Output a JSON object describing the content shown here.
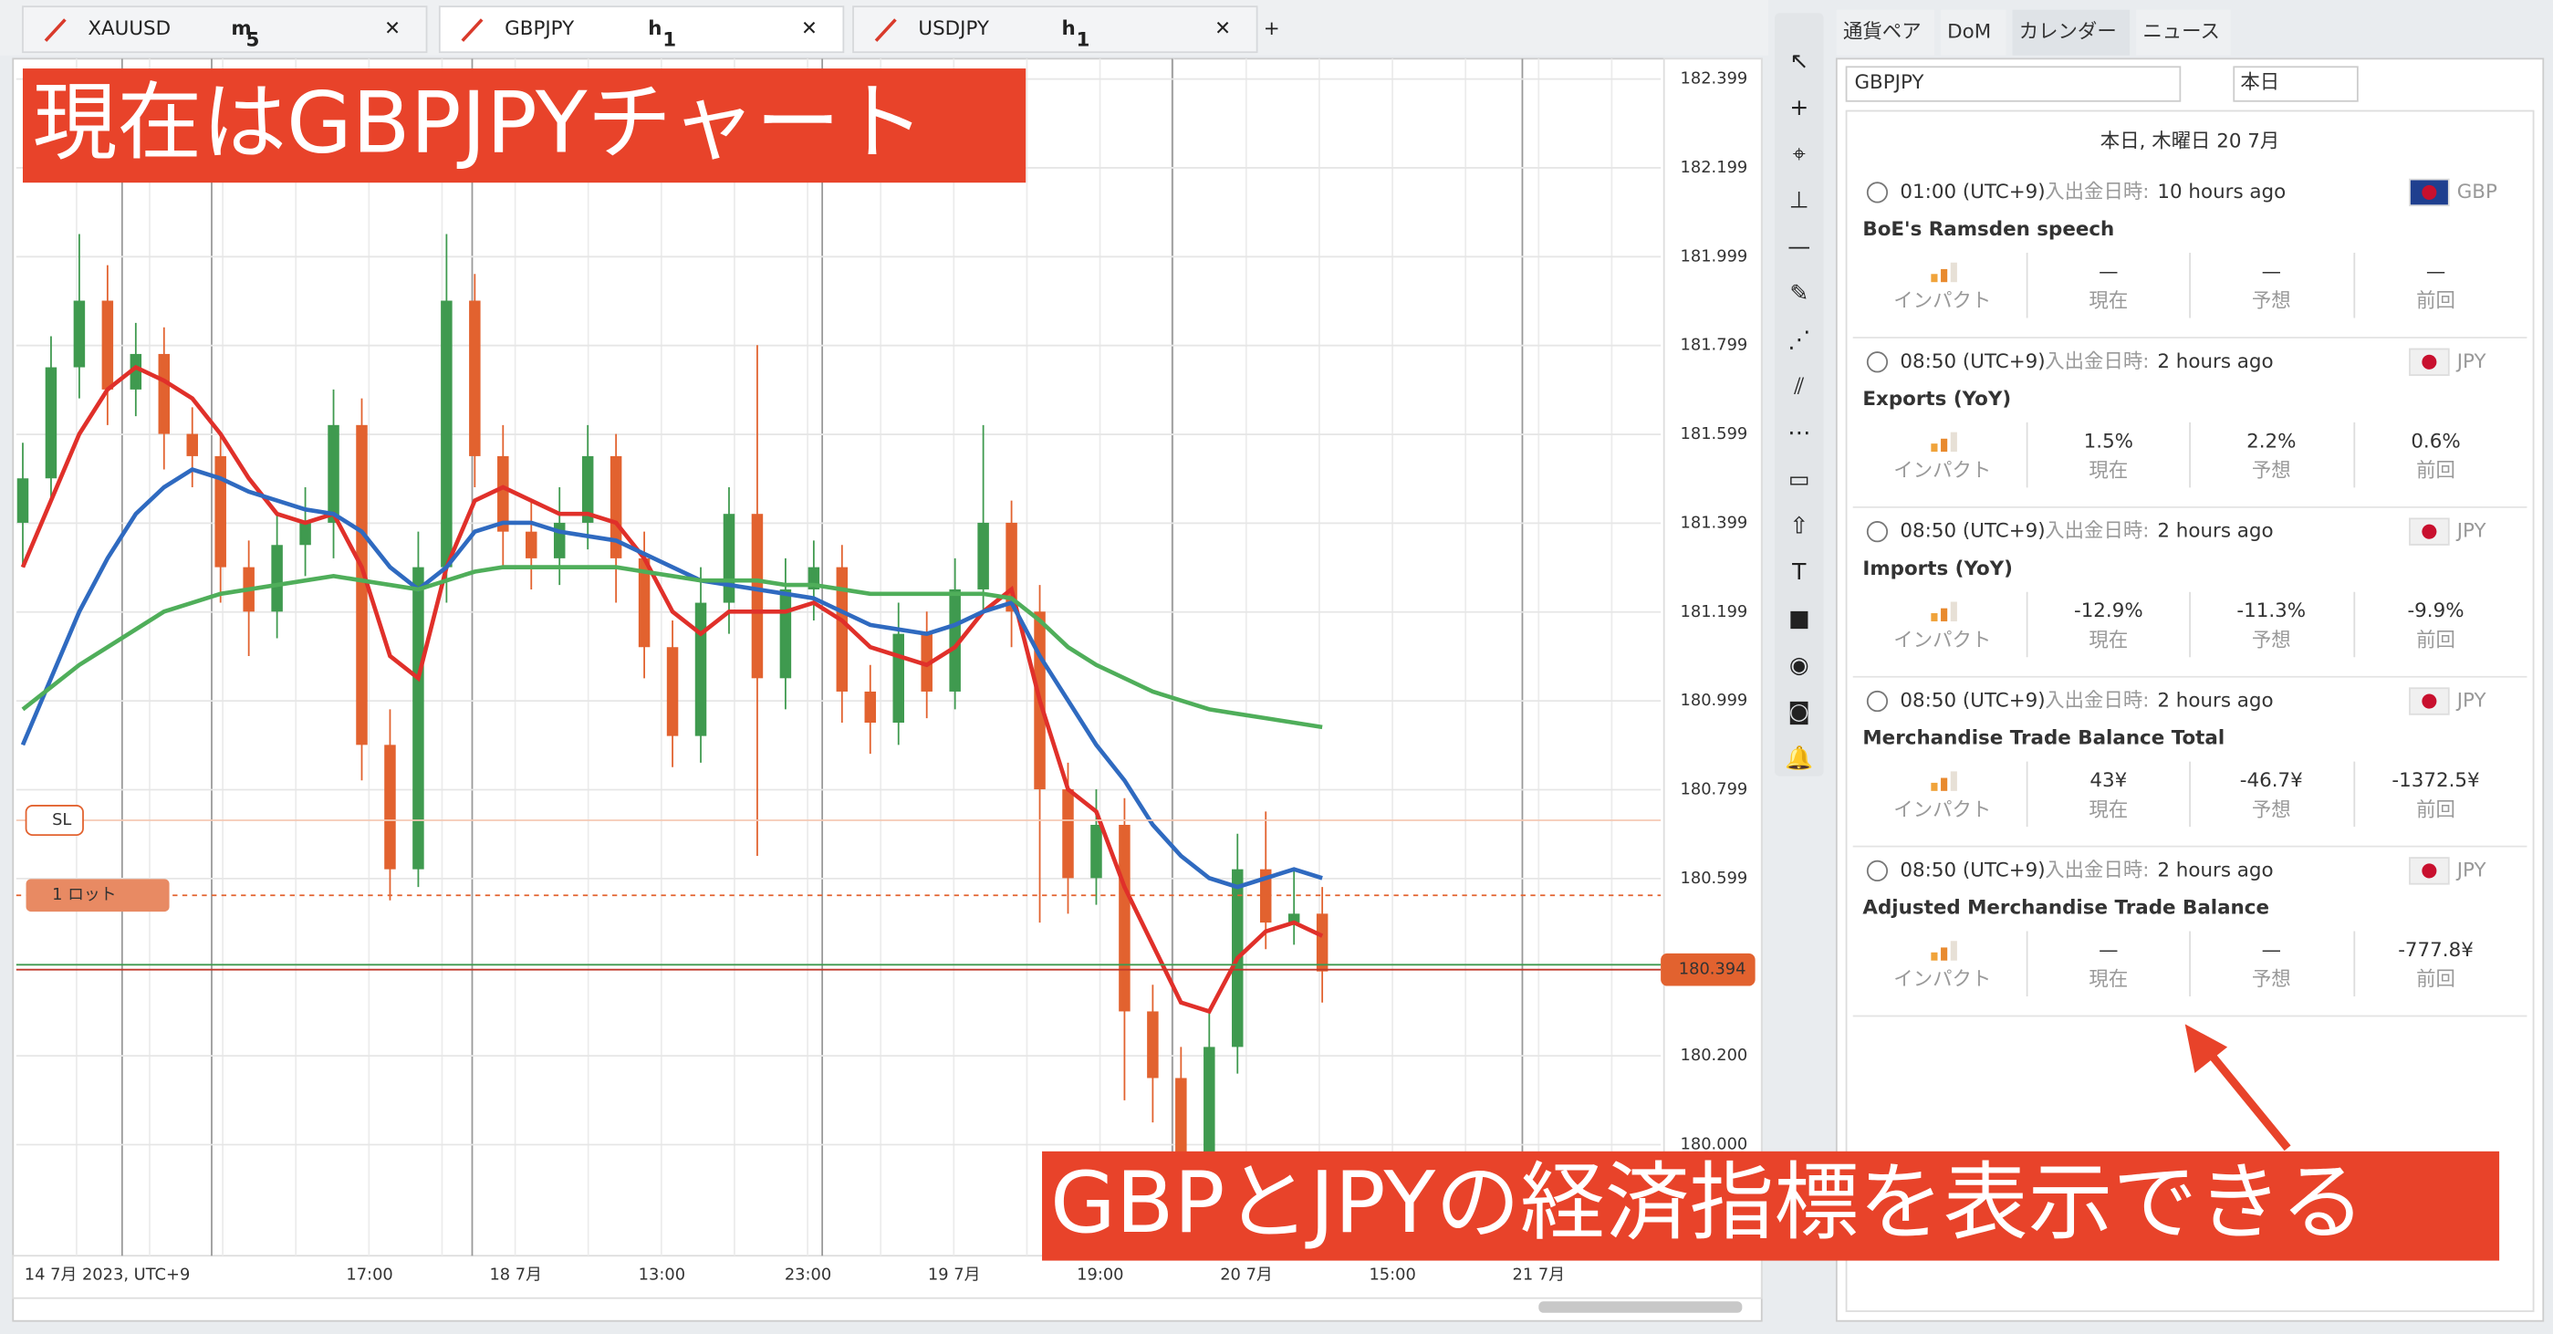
{
  "tabs": [
    {
      "symbol": "XAUUSD",
      "timeframe": "m",
      "period": "5"
    },
    {
      "symbol": "GBPJPY",
      "timeframe": "h",
      "period": "1"
    },
    {
      "symbol": "USDJPY",
      "timeframe": "h",
      "period": "1"
    }
  ],
  "chart": {
    "ylim": [
      179.75,
      182.43
    ],
    "price_ticks": [
      182.399,
      182.199,
      181.999,
      181.799,
      181.599,
      181.399,
      181.199,
      180.999,
      180.799,
      180.599,
      {
        "value": 180.2,
        "label": "180.200"
      },
      {
        "value": 180,
        "label": "180.000"
      }
    ],
    "current_price": 180.394,
    "time_labels": [
      "14 7月 2023, UTC+9",
      "17:00",
      "18 7月",
      "13:00",
      "23:00",
      "19 7月",
      "19:00",
      "20 7月",
      "15:00",
      "21 7月"
    ],
    "sl_label": "SL",
    "lot_label": "1 ロット",
    "candles": [
      [
        181.4,
        181.58,
        181.3,
        181.5
      ],
      [
        181.5,
        181.82,
        181.45,
        181.75
      ],
      [
        181.75,
        182.05,
        181.68,
        181.9
      ],
      [
        181.9,
        181.98,
        181.62,
        181.7
      ],
      [
        181.7,
        181.85,
        181.64,
        181.78
      ],
      [
        181.78,
        181.84,
        181.52,
        181.6
      ],
      [
        181.6,
        181.66,
        181.48,
        181.55
      ],
      [
        181.55,
        181.6,
        181.22,
        181.3
      ],
      [
        181.3,
        181.36,
        181.1,
        181.2
      ],
      [
        181.2,
        181.42,
        181.14,
        181.35
      ],
      [
        181.35,
        181.48,
        181.28,
        181.4
      ],
      [
        181.4,
        181.7,
        181.32,
        181.62
      ],
      [
        181.62,
        181.68,
        180.82,
        180.9
      ],
      [
        180.9,
        180.98,
        180.55,
        180.62
      ],
      [
        180.62,
        181.38,
        180.58,
        181.3
      ],
      [
        181.3,
        182.05,
        181.22,
        181.9
      ],
      [
        181.9,
        181.96,
        181.48,
        181.55
      ],
      [
        181.55,
        181.62,
        181.3,
        181.38
      ],
      [
        181.38,
        181.45,
        181.25,
        181.32
      ],
      [
        181.32,
        181.48,
        181.26,
        181.4
      ],
      [
        181.4,
        181.62,
        181.34,
        181.55
      ],
      [
        181.55,
        181.6,
        181.22,
        181.32
      ],
      [
        181.32,
        181.38,
        181.05,
        181.12
      ],
      [
        181.12,
        181.18,
        180.85,
        180.92
      ],
      [
        180.92,
        181.3,
        180.86,
        181.22
      ],
      [
        181.22,
        181.48,
        181.15,
        181.42
      ],
      [
        181.42,
        181.8,
        180.65,
        181.05
      ],
      [
        181.05,
        181.32,
        180.98,
        181.25
      ],
      [
        181.25,
        181.36,
        181.18,
        181.3
      ],
      [
        181.3,
        181.35,
        180.95,
        181.02
      ],
      [
        181.02,
        181.08,
        180.88,
        180.95
      ],
      [
        180.95,
        181.22,
        180.9,
        181.15
      ],
      [
        181.15,
        181.2,
        180.96,
        181.02
      ],
      [
        181.02,
        181.32,
        180.98,
        181.25
      ],
      [
        181.25,
        181.62,
        181.2,
        181.4
      ],
      [
        181.4,
        181.45,
        181.12,
        181.2
      ],
      [
        181.2,
        181.26,
        180.5,
        180.8
      ],
      [
        180.8,
        180.86,
        180.52,
        180.6
      ],
      [
        180.6,
        180.8,
        180.54,
        180.72
      ],
      [
        180.72,
        180.78,
        180.1,
        180.3
      ],
      [
        180.3,
        180.36,
        180.05,
        180.15
      ],
      [
        180.15,
        180.22,
        179.9,
        179.98
      ],
      [
        179.98,
        180.3,
        179.92,
        180.22
      ],
      [
        180.22,
        180.7,
        180.16,
        180.62
      ],
      [
        180.62,
        180.75,
        180.44,
        180.5
      ],
      [
        180.5,
        180.62,
        180.45,
        180.52
      ],
      [
        180.52,
        180.58,
        180.32,
        180.39
      ]
    ],
    "ma_fast": [
      181.3,
      181.45,
      181.6,
      181.7,
      181.75,
      181.72,
      181.68,
      181.6,
      181.5,
      181.42,
      181.4,
      181.42,
      181.3,
      181.1,
      181.05,
      181.3,
      181.45,
      181.48,
      181.45,
      181.42,
      181.42,
      181.4,
      181.32,
      181.2,
      181.15,
      181.2,
      181.2,
      181.2,
      181.22,
      181.18,
      181.12,
      181.1,
      181.08,
      181.12,
      181.2,
      181.25,
      181.0,
      180.8,
      180.75,
      180.58,
      180.45,
      180.32,
      180.3,
      180.42,
      180.48,
      180.5,
      180.47
    ],
    "ma_mid": [
      180.9,
      181.05,
      181.2,
      181.32,
      181.42,
      181.48,
      181.52,
      181.5,
      181.47,
      181.45,
      181.43,
      181.42,
      181.38,
      181.3,
      181.25,
      181.3,
      181.38,
      181.4,
      181.4,
      181.38,
      181.37,
      181.36,
      181.33,
      181.3,
      181.27,
      181.26,
      181.25,
      181.24,
      181.23,
      181.2,
      181.17,
      181.16,
      181.15,
      181.17,
      181.2,
      181.22,
      181.1,
      181.0,
      180.9,
      180.82,
      180.72,
      180.65,
      180.6,
      180.58,
      180.6,
      180.62,
      180.6
    ],
    "ma_slow": [
      180.98,
      181.03,
      181.08,
      181.12,
      181.16,
      181.2,
      181.22,
      181.24,
      181.25,
      181.26,
      181.27,
      181.28,
      181.27,
      181.26,
      181.25,
      181.27,
      181.29,
      181.3,
      181.3,
      181.3,
      181.3,
      181.3,
      181.29,
      181.28,
      181.27,
      181.27,
      181.27,
      181.26,
      181.26,
      181.25,
      181.24,
      181.24,
      181.24,
      181.24,
      181.24,
      181.23,
      181.18,
      181.12,
      181.08,
      181.05,
      181.02,
      181.0,
      180.98,
      180.97,
      180.96,
      180.95,
      180.94
    ]
  },
  "annotations": [
    "現在はGBPJPYチャート",
    "GBPとJPYの経済指標を表示できる"
  ],
  "panel": {
    "tabs": [
      "通貨ペア",
      "DoM",
      "カレンダー",
      "ニュース"
    ],
    "symbol": "GBPJPY",
    "period": "本日",
    "date_header": "本日, 木曜日 20 7月",
    "time_label": "入出金日時:",
    "columns": [
      "インパクト",
      "現在",
      "予想",
      "前回"
    ],
    "events": [
      {
        "time": "01:00 (UTC+9)",
        "ago": "10 hours ago",
        "currency": "GBP",
        "title": "BoE's Ramsden speech",
        "values": [
          "—",
          "—",
          "—"
        ]
      },
      {
        "time": "08:50 (UTC+9)",
        "ago": "2 hours ago",
        "currency": "JPY",
        "title": "Exports (YoY)",
        "values": [
          "1.5%",
          "2.2%",
          "0.6%"
        ]
      },
      {
        "time": "08:50 (UTC+9)",
        "ago": "2 hours ago",
        "currency": "JPY",
        "title": "Imports (YoY)",
        "values": [
          "-12.9%",
          "-11.3%",
          "-9.9%"
        ]
      },
      {
        "time": "08:50 (UTC+9)",
        "ago": "2 hours ago",
        "currency": "JPY",
        "title": "Merchandise Trade Balance Total",
        "values": [
          "43¥",
          "-46.7¥",
          "-1372.5¥"
        ]
      },
      {
        "time": "08:50 (UTC+9)",
        "ago": "2 hours ago",
        "currency": "JPY",
        "title": "Adjusted Merchandise Trade Balance",
        "values": [
          "—",
          "—",
          "-777.8¥"
        ]
      }
    ]
  }
}
